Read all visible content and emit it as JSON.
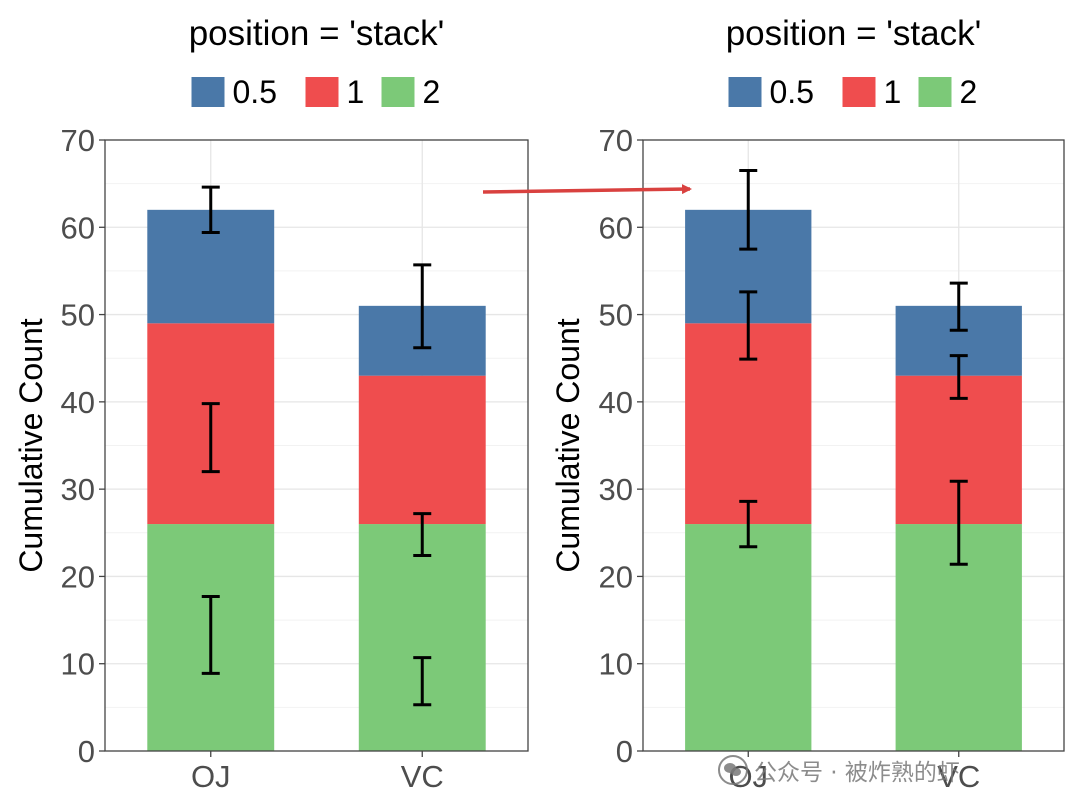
{
  "colors": {
    "s05": "#4A78A8",
    "s1": "#EF4D4E",
    "s2": "#7CC978",
    "arrow": "#D9413F"
  },
  "watermark": {
    "text": "公众号 · 被炸熟的虾",
    "icon": "wechat-icon"
  },
  "chart_data": [
    {
      "type": "bar",
      "stacked": true,
      "title": "position = 'stack'",
      "legend": {
        "placement": "top",
        "entries": [
          "0.5",
          "1",
          "2"
        ]
      },
      "ylabel": "Cumulative Count",
      "xlabel": "",
      "ylim": [
        0,
        70
      ],
      "yticks": [
        0,
        10,
        20,
        30,
        40,
        50,
        60,
        70
      ],
      "grid": true,
      "categories": [
        "OJ",
        "VC"
      ],
      "series": [
        {
          "name": "2",
          "values": [
            26,
            26
          ]
        },
        {
          "name": "1",
          "values": [
            23,
            17
          ]
        },
        {
          "name": "0.5",
          "values": [
            13,
            8
          ]
        }
      ],
      "error_bars": [
        {
          "series": "2",
          "values": [
            [
              8.9,
              17.7
            ],
            [
              5.3,
              10.7
            ]
          ]
        },
        {
          "series": "1",
          "values": [
            [
              32.0,
              39.8
            ],
            [
              22.4,
              27.2
            ]
          ]
        },
        {
          "series": "0.5",
          "values": [
            [
              59.4,
              64.6
            ],
            [
              46.2,
              55.7
            ]
          ]
        }
      ]
    },
    {
      "type": "bar",
      "stacked": true,
      "title": "position = 'stack'",
      "legend": {
        "placement": "top",
        "entries": [
          "0.5",
          "1",
          "2"
        ]
      },
      "ylabel": "Cumulative Count",
      "xlabel": "",
      "ylim": [
        0,
        70
      ],
      "yticks": [
        0,
        10,
        20,
        30,
        40,
        50,
        60,
        70
      ],
      "grid": true,
      "categories": [
        "OJ",
        "VC"
      ],
      "series": [
        {
          "name": "2",
          "values": [
            26,
            26
          ]
        },
        {
          "name": "1",
          "values": [
            23,
            17
          ]
        },
        {
          "name": "0.5",
          "values": [
            13,
            8
          ]
        }
      ],
      "error_bars": [
        {
          "series": "2",
          "values": [
            [
              23.4,
              28.6
            ],
            [
              21.4,
              30.9
            ]
          ]
        },
        {
          "series": "1",
          "values": [
            [
              44.9,
              52.6
            ],
            [
              40.4,
              45.3
            ]
          ]
        },
        {
          "series": "0.5",
          "values": [
            [
              57.5,
              66.5
            ],
            [
              48.2,
              53.6
            ]
          ]
        }
      ]
    }
  ]
}
